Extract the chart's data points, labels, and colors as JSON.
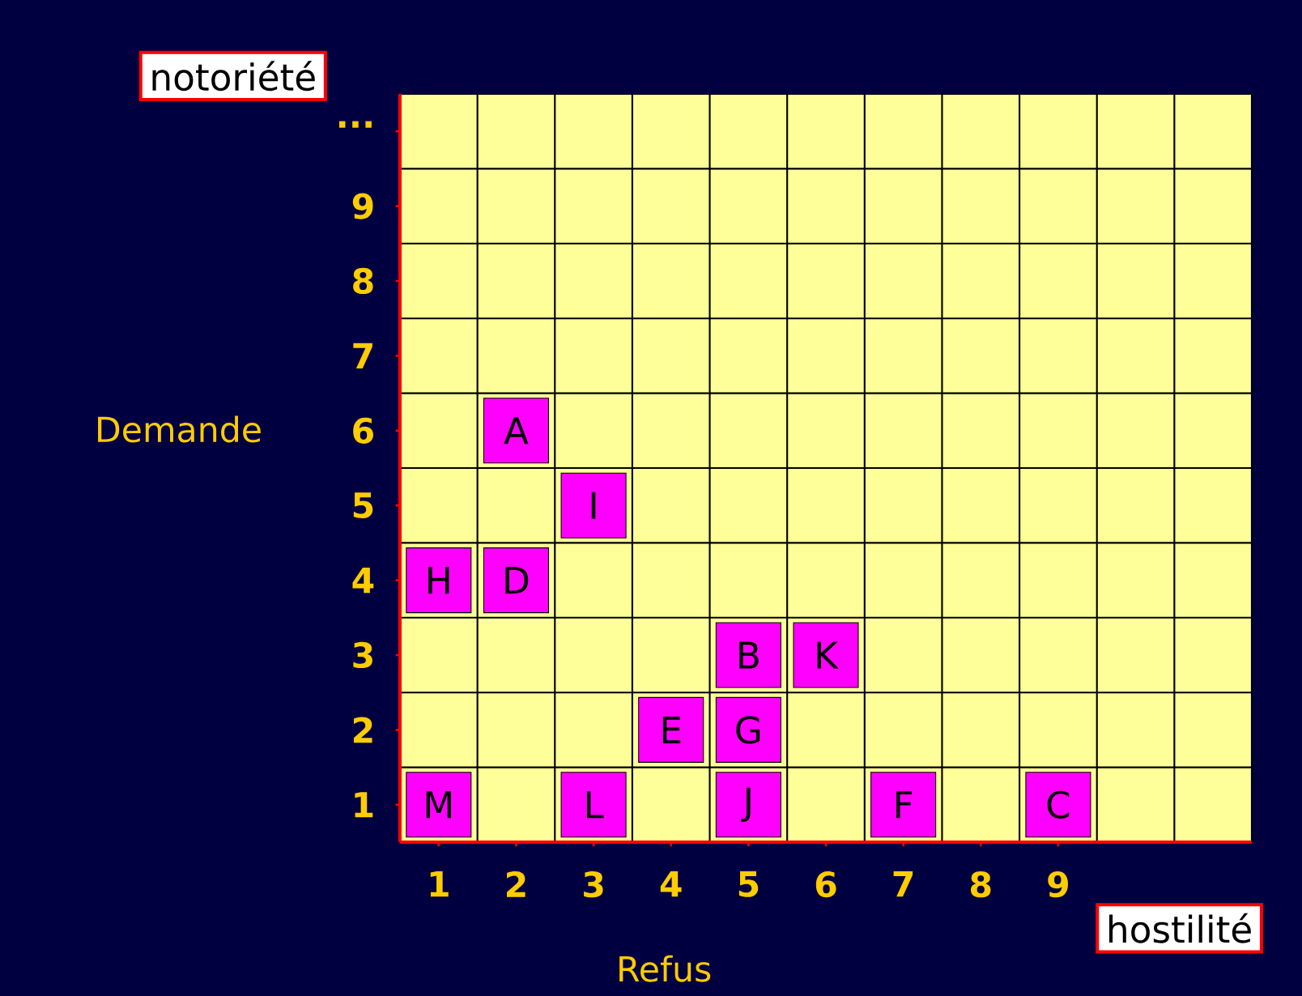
{
  "chart_data": {
    "type": "scatter",
    "xlabel": "Refus",
    "ylabel": "Demande",
    "x": [
      2,
      3,
      1,
      2,
      5,
      6,
      4,
      5,
      1,
      3,
      5,
      7,
      9
    ],
    "values": [
      6,
      5,
      4,
      4,
      3,
      3,
      2,
      2,
      1,
      1,
      1,
      1,
      1
    ],
    "color": "#ff00ff",
    "marker": "square",
    "grid": true,
    "xlim": [
      0.5,
      11.5
    ],
    "ylim": [
      0.5,
      10.5
    ],
    "xticks": [
      1,
      2,
      3,
      4,
      5,
      6,
      7,
      8,
      9
    ],
    "yticks": [
      1,
      2,
      3,
      4,
      5,
      6,
      7,
      8,
      9,
      {
        "value": 10,
        "label": "..."
      }
    ],
    "annotations": [
      "notoriété",
      "hostilité",
      {
        "text": "A",
        "x": 2,
        "y": 6
      },
      {
        "text": "I",
        "x": 3,
        "y": 5
      },
      {
        "text": "H",
        "x": 1,
        "y": 4
      },
      {
        "text": "D",
        "x": 2,
        "y": 4
      },
      {
        "text": "B",
        "x": 5,
        "y": 3
      },
      {
        "text": "K",
        "x": 6,
        "y": 3
      },
      {
        "text": "E",
        "x": 4,
        "y": 2
      },
      {
        "text": "G",
        "x": 5,
        "y": 2
      },
      {
        "text": "M",
        "x": 1,
        "y": 1
      },
      {
        "text": "L",
        "x": 3,
        "y": 1
      },
      {
        "text": "J",
        "x": 5,
        "y": 1
      },
      {
        "text": "F",
        "x": 7,
        "y": 1
      },
      {
        "text": "C",
        "x": 9,
        "y": 1
      }
    ]
  }
}
